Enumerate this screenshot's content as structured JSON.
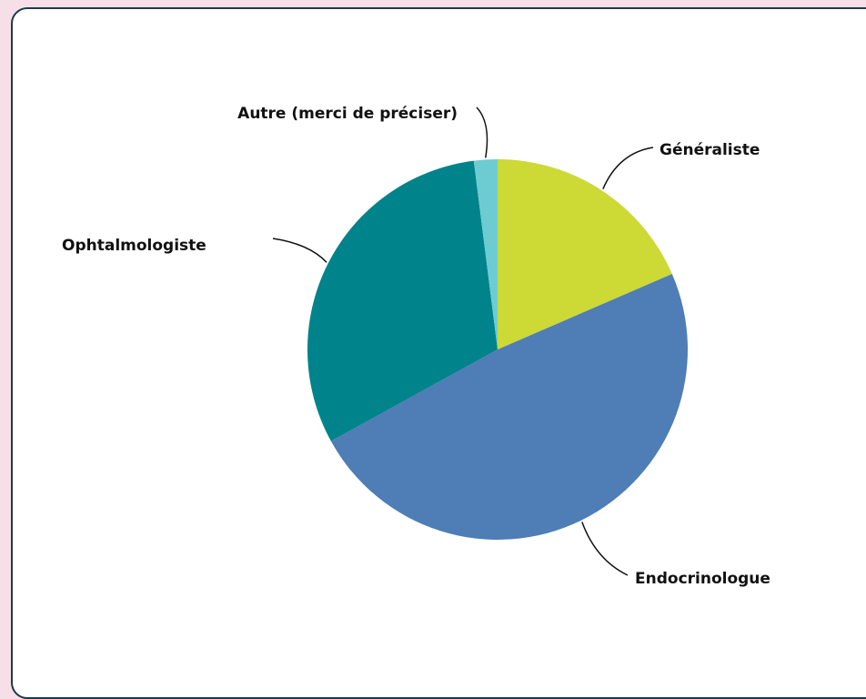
{
  "chart_data": {
    "type": "pie",
    "categories": [
      "Généraliste",
      "Endocrinologue",
      "Ophtalmologiste",
      "Autre (merci de préciser)"
    ],
    "values": [
      18.5,
      48.5,
      31,
      2
    ],
    "colors": [
      "#cdd935",
      "#4f7db5",
      "#00838a",
      "#6cccd1"
    ]
  }
}
